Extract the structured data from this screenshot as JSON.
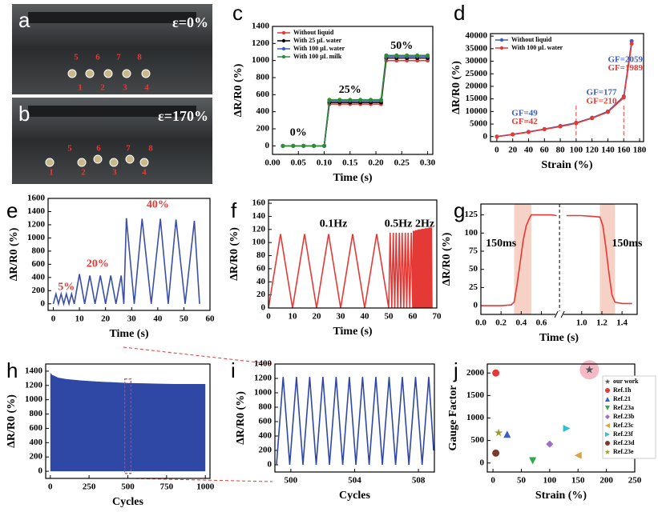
{
  "photos": [
    {
      "panel": "a",
      "strain": "ε=0%",
      "labels": [
        "5",
        "6",
        "7",
        "8",
        "1",
        "2",
        "3",
        "4"
      ]
    },
    {
      "panel": "b",
      "strain": "ε=170%",
      "labels": [
        "5",
        "6",
        "7",
        "8",
        "1",
        "2",
        "3",
        "4"
      ]
    }
  ],
  "chart_data": [
    {
      "type": "line",
      "panel": "c",
      "xlabel": "Time (s)",
      "ylabel": "ΔR/R0 (%)",
      "markers": true,
      "legend": "upper-left",
      "xlim": [
        0,
        0.31
      ],
      "ylim": [
        -100,
        1400
      ],
      "xticks": [
        {
          "value": 0,
          "label": "0.00"
        },
        {
          "value": 0.05,
          "label": "0.05"
        },
        {
          "value": 0.1,
          "label": "0.10"
        },
        {
          "value": 0.15,
          "label": "0.15"
        },
        {
          "value": 0.2,
          "label": "0.20"
        },
        {
          "value": 0.25,
          "label": "0.25"
        },
        {
          "value": 0.3,
          "label": "0.30"
        }
      ],
      "yticks": [
        0,
        200,
        400,
        600,
        800,
        1000,
        1200,
        1400
      ],
      "annotations": [
        {
          "text": "0%",
          "color": "#000000"
        },
        {
          "text": "25%",
          "color": "#000000"
        },
        {
          "text": "50%",
          "color": "#000000"
        }
      ],
      "series": [
        {
          "name": "Without liquid",
          "color": "#e53935",
          "x": [
            0.02,
            0.04,
            0.06,
            0.08,
            0.1,
            0.11,
            0.13,
            0.15,
            0.17,
            0.19,
            0.21,
            0.22,
            0.24,
            0.26,
            0.28,
            0.3
          ],
          "values": [
            0,
            0,
            0,
            0,
            0,
            490,
            490,
            490,
            490,
            490,
            490,
            1000,
            1000,
            1000,
            1000,
            1000
          ]
        },
        {
          "name": "With 25 μL water",
          "color": "#000000",
          "x": [
            0.02,
            0.04,
            0.06,
            0.08,
            0.1,
            0.11,
            0.13,
            0.15,
            0.17,
            0.19,
            0.21,
            0.22,
            0.24,
            0.26,
            0.28,
            0.3
          ],
          "values": [
            0,
            0,
            0,
            0,
            0,
            510,
            510,
            510,
            510,
            510,
            510,
            1030,
            1030,
            1030,
            1030,
            1030
          ]
        },
        {
          "name": "With 100 μL water",
          "color": "#3b5fc0",
          "x": [
            0.02,
            0.04,
            0.06,
            0.08,
            0.1,
            0.11,
            0.13,
            0.15,
            0.17,
            0.19,
            0.21,
            0.22,
            0.24,
            0.26,
            0.28,
            0.3
          ],
          "values": [
            0,
            0,
            0,
            0,
            0,
            530,
            530,
            530,
            530,
            530,
            530,
            1050,
            1050,
            1050,
            1050,
            1050
          ]
        },
        {
          "name": "With 100 μL milk",
          "color": "#2e8b3a",
          "x": [
            0.02,
            0.04,
            0.06,
            0.08,
            0.1,
            0.11,
            0.13,
            0.15,
            0.17,
            0.19,
            0.21,
            0.22,
            0.24,
            0.26,
            0.28,
            0.3
          ],
          "values": [
            0,
            0,
            0,
            0,
            0,
            540,
            540,
            540,
            540,
            540,
            540,
            1060,
            1060,
            1060,
            1060,
            1060
          ]
        }
      ]
    },
    {
      "type": "line",
      "panel": "d",
      "xlabel": "Strain (%)",
      "ylabel": "ΔR/R0 (%)",
      "markers": true,
      "legend": "upper-left",
      "xlim": [
        -8,
        185
      ],
      "ylim": [
        -2000,
        41000
      ],
      "xticks": [
        0,
        20,
        40,
        60,
        80,
        100,
        120,
        140,
        160,
        180
      ],
      "yticks": [
        0,
        5000,
        10000,
        15000,
        20000,
        25000,
        30000,
        35000,
        40000
      ],
      "vlines": [
        100,
        160
      ],
      "annotations": [
        {
          "text": "GF=49",
          "color": "#3b5fc0"
        },
        {
          "text": "GF=42",
          "color": "#e53935"
        },
        {
          "text": "GF=177",
          "color": "#3b5fc0"
        },
        {
          "text": "GF=210",
          "color": "#e53935"
        },
        {
          "text": "GF=2059",
          "color": "#3b5fc0"
        },
        {
          "text": "GF=1989",
          "color": "#e53935"
        }
      ],
      "series": [
        {
          "name": "Without liquid",
          "color": "#3b5fc0",
          "x": [
            0,
            20,
            40,
            60,
            80,
            100,
            120,
            140,
            160,
            170
          ],
          "values": [
            0,
            900,
            1900,
            3000,
            4200,
            5500,
            7500,
            10000,
            16000,
            38000
          ]
        },
        {
          "name": "With 100 μL water",
          "color": "#e53935",
          "x": [
            0,
            20,
            40,
            60,
            80,
            100,
            120,
            140,
            160,
            170
          ],
          "values": [
            0,
            800,
            1800,
            2900,
            4000,
            5300,
            7300,
            9800,
            15500,
            37000
          ]
        }
      ]
    },
    {
      "type": "line",
      "panel": "e",
      "xlabel": "Time (s)",
      "ylabel": "ΔR/R0 (%)",
      "xlim": [
        -2,
        60
      ],
      "ylim": [
        -100,
        1600
      ],
      "xticks": [
        0,
        10,
        20,
        30,
        40,
        50,
        60
      ],
      "yticks": [
        0,
        200,
        400,
        600,
        800,
        1000,
        1200,
        1400,
        1600
      ],
      "annotations": [
        {
          "text": "5%",
          "color": "#e53935"
        },
        {
          "text": "20%",
          "color": "#e53935"
        },
        {
          "text": "40%",
          "color": "#e53935"
        }
      ],
      "series": [
        {
          "color": "#3b4fa8",
          "x": [
            0,
            1,
            2,
            3,
            4,
            5,
            6,
            7,
            8,
            10,
            12,
            14,
            16,
            18,
            20,
            22,
            24,
            26,
            27,
            28,
            31,
            34,
            37.5,
            41,
            44,
            47,
            50.5,
            54,
            56
          ],
          "values": [
            0,
            150,
            0,
            150,
            0,
            150,
            0,
            150,
            0,
            450,
            0,
            430,
            0,
            430,
            0,
            430,
            0,
            430,
            0,
            1300,
            0,
            1290,
            0,
            1290,
            0,
            1280,
            0,
            1260,
            0
          ]
        }
      ]
    },
    {
      "type": "line",
      "panel": "f",
      "xlabel": "Time (s)",
      "ylabel": "ΔR/R0 (%)",
      "xlim": [
        0,
        70
      ],
      "ylim": [
        0,
        165
      ],
      "xticks": [
        0,
        10,
        20,
        30,
        40,
        50,
        60,
        70
      ],
      "yticks": [
        0,
        20,
        40,
        60,
        80,
        100,
        120,
        140,
        160
      ],
      "annotations": [
        {
          "text": "0.1Hz",
          "color": "#000000"
        },
        {
          "text": "0.5Hz",
          "color": "#000000"
        },
        {
          "text": "2Hz",
          "color": "#000000"
        }
      ],
      "series": [
        {
          "color": "#e53935",
          "x": [
            0,
            5,
            10,
            15,
            20,
            25,
            30,
            35,
            40,
            45,
            50,
            50.6,
            51.25,
            51.9,
            52.5,
            53.1,
            53.75,
            54.4,
            55,
            55.6,
            56.25,
            56.9,
            57.5,
            58.1,
            58.75,
            59.4,
            60,
            60.25,
            60.5,
            60.75,
            61,
            61.25,
            61.5,
            61.75,
            62,
            62.25,
            62.5,
            62.75,
            63,
            63.25,
            63.5,
            63.75,
            64,
            64.25,
            64.5,
            64.75,
            65,
            65.25,
            65.5,
            65.75,
            66,
            66.25,
            66.5,
            66.75,
            67,
            67.25,
            67.5,
            67.75,
            68
          ],
          "values": [
            0,
            113,
            0,
            113,
            0,
            113,
            0,
            113,
            0,
            113,
            0,
            115,
            0,
            115,
            0,
            115,
            0,
            115,
            0,
            115,
            0,
            115,
            0,
            115,
            0,
            115,
            0,
            118,
            0,
            118,
            0,
            119,
            0,
            119,
            0,
            120,
            0,
            120,
            0,
            120,
            0,
            121,
            0,
            121,
            0,
            121,
            0,
            122,
            0,
            122,
            0,
            122,
            0,
            123,
            0,
            123,
            0,
            123,
            0
          ]
        }
      ]
    },
    {
      "type": "line",
      "panel": "g",
      "xlabel": "Time (s)",
      "ylabel": "ΔR/R0 (%)",
      "xlim": [
        0,
        1.55
      ],
      "ylim": [
        -12,
        140
      ],
      "xticks": [
        {
          "value": 0,
          "label": "0.0"
        },
        {
          "value": 0.2,
          "label": "0.2"
        },
        {
          "value": 0.4,
          "label": "0.4"
        },
        {
          "value": 0.6,
          "label": "0.6"
        },
        {
          "value": 1,
          "label": "1.0"
        },
        {
          "value": 1.2,
          "label": "1.2"
        },
        {
          "value": 1.4,
          "label": "1.4"
        }
      ],
      "yticks": [
        0,
        25,
        50,
        75,
        100,
        125
      ],
      "highlights": [
        [
          0.33,
          0.5
        ],
        [
          1.18,
          1.33
        ]
      ],
      "annotations": [
        {
          "text": "150ms",
          "color": "#000000"
        },
        {
          "text": "150ms",
          "color": "#000000"
        }
      ],
      "series": [
        {
          "color": "#e53935",
          "x": [
            0,
            0.1,
            0.2,
            0.3,
            0.33,
            0.36,
            0.39,
            0.42,
            0.45,
            0.48,
            0.5,
            0.6,
            0.7,
            0.75,
            0.8,
            0.85,
            1,
            1.1,
            1.18,
            1.21,
            1.24,
            1.27,
            1.3,
            1.33,
            1.4,
            1.5
          ],
          "values": [
            0,
            0,
            0,
            1,
            5,
            30,
            60,
            90,
            110,
            120,
            125,
            125,
            125,
            124,
            null,
            124,
            124,
            123,
            122,
            110,
            80,
            45,
            15,
            5,
            3,
            3
          ]
        }
      ]
    },
    {
      "type": "area",
      "panel": "h",
      "xlabel": "Cycles",
      "ylabel": "ΔR/R0 (%)",
      "xlim": [
        -30,
        1030
      ],
      "ylim": [
        -100,
        1500
      ],
      "xticks": [
        0,
        250,
        500,
        750,
        1000
      ],
      "yticks": [
        0,
        200,
        400,
        600,
        800,
        1000,
        1200,
        1400
      ],
      "series": [
        {
          "color": "#2f48a6",
          "x": [
            0,
            10,
            50,
            100,
            200,
            300,
            400,
            500,
            600,
            700,
            800,
            900,
            1000
          ],
          "values": [
            1380,
            1350,
            1310,
            1290,
            1270,
            1255,
            1245,
            1235,
            1230,
            1225,
            1220,
            1220,
            1220
          ]
        }
      ]
    },
    {
      "type": "line",
      "panel": "i",
      "xlabel": "Cycles",
      "ylabel": "ΔR/R0 (%)",
      "xlim": [
        499,
        509
      ],
      "ylim": [
        -100,
        1400
      ],
      "xticks": [
        500,
        504,
        508
      ],
      "yticks": [
        0,
        200,
        400,
        600,
        800,
        1000,
        1200,
        1400
      ],
      "series": [
        {
          "color": "#2f48a6",
          "x": [
            499.1,
            499.52,
            499.93,
            500.35,
            500.76,
            501.18,
            501.59,
            502.01,
            502.42,
            502.84,
            503.25,
            503.67,
            504.08,
            504.5,
            504.91,
            505.33,
            505.74,
            506.16,
            506.57,
            506.99,
            507.4,
            507.82,
            508.23,
            508.65,
            508.95
          ],
          "values": [
            0,
            1220,
            0,
            1220,
            0,
            1220,
            0,
            1220,
            0,
            1220,
            0,
            1220,
            0,
            1220,
            0,
            1220,
            0,
            1220,
            0,
            1220,
            0,
            1220,
            0,
            1220,
            200
          ]
        }
      ]
    },
    {
      "type": "scatter",
      "panel": "j",
      "xlabel": "Strain (%)",
      "ylabel": "Gauge Factor",
      "legend": "right",
      "xlim": [
        -10,
        250
      ],
      "ylim": [
        -200,
        2200
      ],
      "xticks": [
        0,
        50,
        100,
        150,
        200,
        250
      ],
      "yticks": [
        0,
        500,
        1000,
        1500,
        2000
      ],
      "series": [
        {
          "name": "our work",
          "color": "#555555",
          "marker": "star",
          "x": [
            170
          ],
          "values": [
            2070
          ]
        },
        {
          "name": "Ref.1h",
          "color": "#e53935",
          "marker": "circle",
          "x": [
            5
          ],
          "values": [
            2000
          ]
        },
        {
          "name": "Ref.21",
          "color": "#3b5fc0",
          "marker": "triangle-up",
          "x": [
            25
          ],
          "values": [
            640
          ]
        },
        {
          "name": "Ref.23a",
          "color": "#2eaa4a",
          "marker": "triangle-down",
          "x": [
            70
          ],
          "values": [
            50
          ]
        },
        {
          "name": "Ref.23b",
          "color": "#9b6fc8",
          "marker": "diamond",
          "x": [
            100
          ],
          "values": [
            420
          ]
        },
        {
          "name": "Ref.23c",
          "color": "#d9a441",
          "marker": "triangle-left",
          "x": [
            150
          ],
          "values": [
            170
          ]
        },
        {
          "name": "Ref.23f",
          "color": "#30c0d0",
          "marker": "triangle-right",
          "x": [
            130
          ],
          "values": [
            770
          ]
        },
        {
          "name": "Ref.23d",
          "color": "#7b3b2b",
          "marker": "circle",
          "x": [
            5
          ],
          "values": [
            220
          ]
        },
        {
          "name": "Ref.23e",
          "color": "#9a9a30",
          "marker": "star",
          "x": [
            10
          ],
          "values": [
            670
          ]
        }
      ]
    }
  ]
}
